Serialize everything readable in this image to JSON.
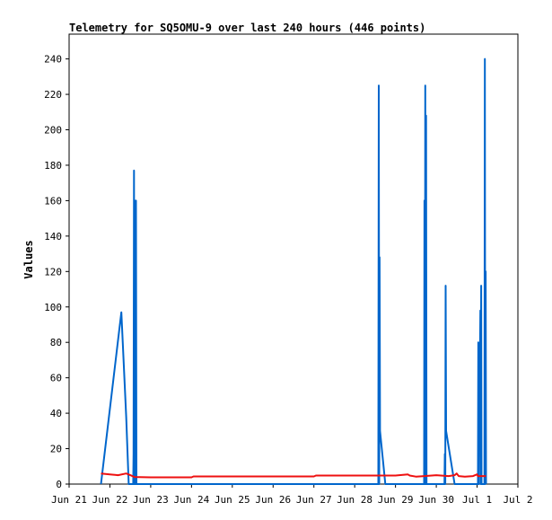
{
  "chart_data": {
    "type": "line",
    "title": "Telemetry for SQ5OMU-9 over last 240 hours (446 points)",
    "xlabel": "",
    "ylabel": "Values",
    "xlim": [
      0,
      11
    ],
    "ylim": [
      0,
      254
    ],
    "x_ticks": [
      {
        "x": 0,
        "label": "Jun 21"
      },
      {
        "x": 1,
        "label": "Jun 22"
      },
      {
        "x": 2,
        "label": "Jun 23"
      },
      {
        "x": 3,
        "label": "Jun 24"
      },
      {
        "x": 4,
        "label": "Jun 25"
      },
      {
        "x": 5,
        "label": "Jun 26"
      },
      {
        "x": 6,
        "label": "Jun 27"
      },
      {
        "x": 7,
        "label": "Jun 28"
      },
      {
        "x": 8,
        "label": "Jun 29"
      },
      {
        "x": 9,
        "label": "Jun 30"
      },
      {
        "x": 10,
        "label": "Jul 1"
      },
      {
        "x": 11,
        "label": "Jul 2"
      }
    ],
    "y_ticks": [
      0,
      20,
      40,
      60,
      80,
      100,
      120,
      140,
      160,
      180,
      200,
      220,
      240
    ],
    "grid": false,
    "series": [
      {
        "color": "#0066cc",
        "points": [
          [
            0.78,
            0
          ],
          [
            1.28,
            97
          ],
          [
            1.4,
            38
          ],
          [
            1.46,
            0
          ],
          [
            1.57,
            0
          ],
          [
            1.58,
            17
          ],
          [
            1.59,
            177
          ],
          [
            1.6,
            0
          ],
          [
            1.62,
            0
          ],
          [
            1.63,
            160
          ],
          [
            1.64,
            160
          ],
          [
            1.65,
            0
          ],
          [
            7.58,
            0
          ],
          [
            7.59,
            225
          ],
          [
            7.6,
            0
          ],
          [
            7.61,
            128
          ],
          [
            7.62,
            30
          ],
          [
            7.75,
            0
          ],
          [
            8.7,
            0
          ],
          [
            8.71,
            160
          ],
          [
            8.72,
            0
          ],
          [
            8.73,
            225
          ],
          [
            8.74,
            0
          ],
          [
            8.75,
            208
          ],
          [
            8.76,
            0
          ],
          [
            9.2,
            0
          ],
          [
            9.21,
            17
          ],
          [
            9.22,
            0
          ],
          [
            9.23,
            112
          ],
          [
            9.24,
            30
          ],
          [
            9.45,
            0
          ],
          [
            10.02,
            0
          ],
          [
            10.03,
            80
          ],
          [
            10.04,
            0
          ],
          [
            10.05,
            70
          ],
          [
            10.06,
            42
          ],
          [
            10.08,
            98
          ],
          [
            10.09,
            0
          ],
          [
            10.1,
            112
          ],
          [
            10.11,
            0
          ],
          [
            10.18,
            0
          ],
          [
            10.19,
            240
          ],
          [
            10.2,
            0
          ],
          [
            10.21,
            120
          ],
          [
            10.22,
            0
          ]
        ]
      },
      {
        "color": "#ee1111",
        "points": [
          [
            0.78,
            6
          ],
          [
            1.0,
            5.5
          ],
          [
            1.2,
            5
          ],
          [
            1.4,
            6
          ],
          [
            1.5,
            5
          ],
          [
            1.6,
            4
          ],
          [
            2.0,
            3.8
          ],
          [
            3.0,
            3.8
          ],
          [
            3.05,
            4.3
          ],
          [
            4.0,
            4.3
          ],
          [
            5.0,
            4.3
          ],
          [
            6.0,
            4.3
          ],
          [
            6.05,
            4.8
          ],
          [
            7.0,
            4.8
          ],
          [
            8.0,
            4.8
          ],
          [
            8.3,
            5.5
          ],
          [
            8.35,
            4.8
          ],
          [
            8.5,
            4.2
          ],
          [
            8.7,
            4.5
          ],
          [
            9.0,
            5
          ],
          [
            9.3,
            4.5
          ],
          [
            9.45,
            5
          ],
          [
            9.5,
            6
          ],
          [
            9.55,
            4.5
          ],
          [
            9.7,
            4.2
          ],
          [
            9.9,
            4.5
          ],
          [
            10.0,
            5.5
          ],
          [
            10.02,
            4.5
          ],
          [
            10.1,
            4.5
          ],
          [
            10.22,
            4.5
          ]
        ]
      }
    ]
  }
}
